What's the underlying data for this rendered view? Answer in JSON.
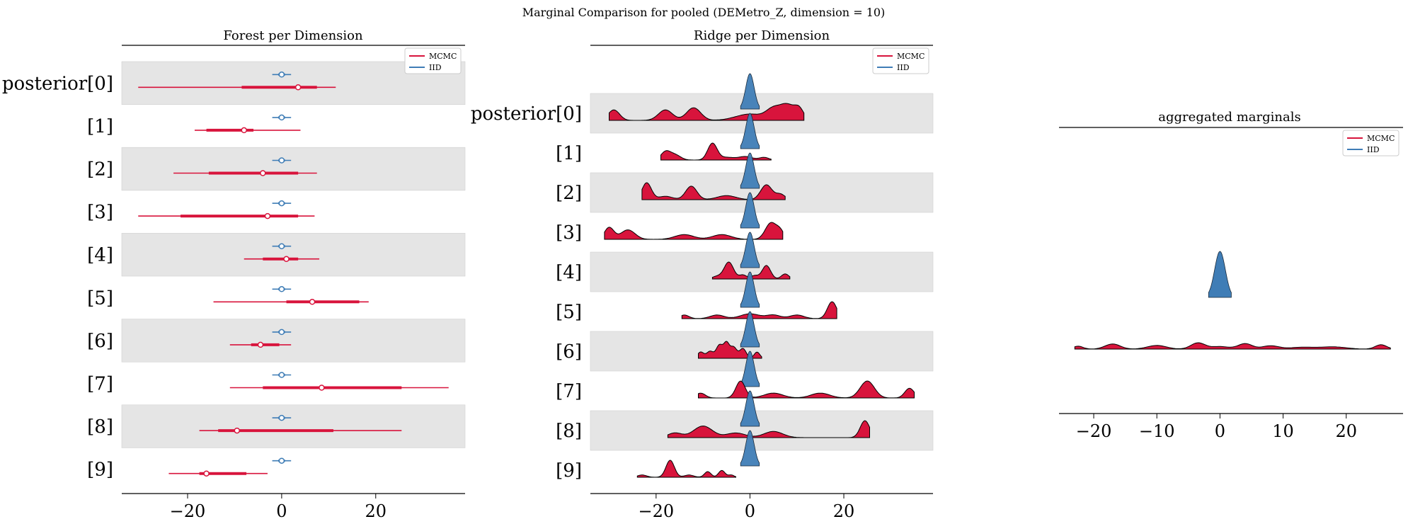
{
  "figure": {
    "suptitle": "Marginal Comparison for pooled (DEMetro_Z, dimension = 10)"
  },
  "colors": {
    "mcmc": "#d8143c",
    "iid": "#3f7db6",
    "band": "#e5e5e5",
    "edge": "#000000"
  },
  "chart_data": [
    {
      "type": "forest",
      "title": "Forest per Dimension",
      "xlim": [
        -34,
        39
      ],
      "xticks": [
        -20,
        0,
        20
      ],
      "legend": {
        "position": "top-right",
        "entries": [
          "MCMC",
          "IID"
        ]
      },
      "labels": [
        "posterior[0]",
        "[1]",
        "[2]",
        "[3]",
        "[4]",
        "[5]",
        "[6]",
        "[7]",
        "[8]",
        "[9]"
      ],
      "series": [
        {
          "name": "MCMC",
          "rows": [
            {
              "mean": 3.5,
              "hdi_50": [
                -8.5,
                7.5
              ],
              "hdi_94": [
                -30.5,
                11.5
              ]
            },
            {
              "mean": -8,
              "hdi_50": [
                -16,
                -6
              ],
              "hdi_94": [
                -18.5,
                4
              ]
            },
            {
              "mean": -4,
              "hdi_50": [
                -15.5,
                3.5
              ],
              "hdi_94": [
                -23,
                7.5
              ]
            },
            {
              "mean": -3,
              "hdi_50": [
                -21.5,
                3.5
              ],
              "hdi_94": [
                -30.5,
                7
              ]
            },
            {
              "mean": 1,
              "hdi_50": [
                -4,
                3.5
              ],
              "hdi_94": [
                -8,
                8
              ]
            },
            {
              "mean": 6.5,
              "hdi_50": [
                1,
                16.5
              ],
              "hdi_94": [
                -14.5,
                18.5
              ]
            },
            {
              "mean": -4.5,
              "hdi_50": [
                -6.5,
                -0.5
              ],
              "hdi_94": [
                -11,
                2
              ]
            },
            {
              "mean": 8.5,
              "hdi_50": [
                -4,
                25.5
              ],
              "hdi_94": [
                -11,
                35.5
              ]
            },
            {
              "mean": -9.5,
              "hdi_50": [
                -13.5,
                11
              ],
              "hdi_94": [
                -17.5,
                25.5
              ]
            },
            {
              "mean": -16,
              "hdi_50": [
                -17.5,
                -7.5
              ],
              "hdi_94": [
                -24,
                -3
              ]
            }
          ]
        },
        {
          "name": "IID",
          "rows": [
            {
              "mean": 0,
              "hdi_50": [
                -0.7,
                0.7
              ],
              "hdi_94": [
                -2,
                2
              ]
            },
            {
              "mean": 0,
              "hdi_50": [
                -0.7,
                0.7
              ],
              "hdi_94": [
                -2,
                2
              ]
            },
            {
              "mean": 0,
              "hdi_50": [
                -0.7,
                0.7
              ],
              "hdi_94": [
                -2,
                2
              ]
            },
            {
              "mean": 0,
              "hdi_50": [
                -0.7,
                0.7
              ],
              "hdi_94": [
                -2,
                2
              ]
            },
            {
              "mean": 0,
              "hdi_50": [
                -0.7,
                0.7
              ],
              "hdi_94": [
                -2,
                2
              ]
            },
            {
              "mean": 0,
              "hdi_50": [
                -0.7,
                0.7
              ],
              "hdi_94": [
                -2,
                2
              ]
            },
            {
              "mean": 0,
              "hdi_50": [
                -0.7,
                0.7
              ],
              "hdi_94": [
                -2,
                2
              ]
            },
            {
              "mean": 0,
              "hdi_50": [
                -0.7,
                0.7
              ],
              "hdi_94": [
                -2,
                2
              ]
            },
            {
              "mean": 0,
              "hdi_50": [
                -0.7,
                0.7
              ],
              "hdi_94": [
                -2,
                2
              ]
            },
            {
              "mean": 0,
              "hdi_50": [
                -0.7,
                0.7
              ],
              "hdi_94": [
                -2,
                2
              ]
            }
          ]
        }
      ]
    },
    {
      "type": "ridge",
      "title": "Ridge per Dimension",
      "xlim": [
        -34,
        39
      ],
      "xticks": [
        -20,
        0,
        20
      ],
      "legend": {
        "position": "top-right",
        "entries": [
          "MCMC",
          "IID"
        ]
      },
      "labels": [
        "posterior[0]",
        "[1]",
        "[2]",
        "[3]",
        "[4]",
        "[5]",
        "[6]",
        "[7]",
        "[8]",
        "[9]"
      ],
      "iid_density": {
        "range": [
          -2,
          2
        ],
        "peaks": [
          [
            0,
            1,
            0.9
          ]
        ]
      },
      "mcmc_densities": [
        {
          "range": [
            -30,
            11.5
          ],
          "peaks": [
            [
              -29,
              0.1,
              1.2
            ],
            [
              -18,
              0.1,
              1.5
            ],
            [
              -12,
              0.12,
              1.5
            ],
            [
              0,
              0.06,
              3
            ],
            [
              5,
              0.1,
              1.5
            ],
            [
              8,
              0.14,
              1.5
            ],
            [
              10.5,
              0.1,
              1
            ]
          ]
        },
        {
          "range": [
            -19,
            4.5
          ],
          "peaks": [
            [
              -18,
              0.18,
              1
            ],
            [
              -16,
              0.12,
              1.2
            ],
            [
              -8,
              0.38,
              1
            ],
            [
              -5,
              0.06,
              1.5
            ],
            [
              -1,
              0.08,
              1.5
            ],
            [
              3,
              0.06,
              1
            ]
          ]
        },
        {
          "range": [
            -23,
            7.5
          ],
          "peaks": [
            [
              -22,
              0.25,
              1
            ],
            [
              -18,
              0.05,
              1.5
            ],
            [
              -12.5,
              0.2,
              1.2
            ],
            [
              -5,
              0.06,
              2
            ],
            [
              3.5,
              0.22,
              1.2
            ],
            [
              6.5,
              0.08,
              1
            ]
          ]
        },
        {
          "range": [
            -31,
            7
          ],
          "peaks": [
            [
              -30,
              0.1,
              1
            ],
            [
              -26,
              0.08,
              1.5
            ],
            [
              -14,
              0.04,
              2
            ],
            [
              -6,
              0.04,
              2
            ],
            [
              4.5,
              0.14,
              1.2
            ],
            [
              6.5,
              0.06,
              0.8
            ]
          ]
        },
        {
          "range": [
            -8,
            8.5
          ],
          "peaks": [
            [
              -7,
              0.08,
              1
            ],
            [
              -4.5,
              0.5,
              1
            ],
            [
              -1.5,
              0.12,
              0.8
            ],
            [
              1,
              0.1,
              0.8
            ],
            [
              3.5,
              0.4,
              0.9
            ],
            [
              7.5,
              0.15,
              0.8
            ]
          ]
        },
        {
          "range": [
            -14.5,
            18.5
          ],
          "peaks": [
            [
              -14,
              0.06,
              1
            ],
            [
              -7,
              0.06,
              1.5
            ],
            [
              0,
              0.08,
              2
            ],
            [
              5,
              0.06,
              1.5
            ],
            [
              10,
              0.06,
              1.5
            ],
            [
              17.5,
              0.28,
              1
            ]
          ]
        },
        {
          "range": [
            -11,
            2.5
          ],
          "peaks": [
            [
              -10.5,
              0.18,
              0.7
            ],
            [
              -8.5,
              0.2,
              0.7
            ],
            [
              -6.5,
              0.38,
              0.7
            ],
            [
              -5,
              0.42,
              0.6
            ],
            [
              -3.5,
              0.32,
              0.7
            ],
            [
              -1.5,
              0.28,
              0.7
            ],
            [
              1.5,
              0.18,
              0.6
            ]
          ]
        },
        {
          "range": [
            -11,
            35
          ],
          "peaks": [
            [
              -10.5,
              0.04,
              1
            ],
            [
              -2,
              0.14,
              1
            ],
            [
              5,
              0.04,
              2
            ],
            [
              15,
              0.04,
              2
            ],
            [
              25,
              0.14,
              1.5
            ],
            [
              34,
              0.08,
              1
            ]
          ]
        },
        {
          "range": [
            -17.5,
            25.5
          ],
          "peaks": [
            [
              -16,
              0.06,
              1.5
            ],
            [
              -10,
              0.15,
              2
            ],
            [
              -3,
              0.06,
              2
            ],
            [
              5,
              0.08,
              2
            ],
            [
              24.5,
              0.22,
              1
            ]
          ]
        },
        {
          "range": [
            -24,
            -3
          ],
          "peaks": [
            [
              -23,
              0.06,
              1
            ],
            [
              -17,
              0.45,
              0.9
            ],
            [
              -13,
              0.06,
              1
            ],
            [
              -9,
              0.15,
              0.7
            ],
            [
              -6,
              0.18,
              0.7
            ],
            [
              -4,
              0.06,
              0.6
            ]
          ]
        }
      ]
    },
    {
      "type": "density",
      "title": "aggregated marginals",
      "xlim": [
        -25.5,
        29
      ],
      "xticks": [
        -20,
        -10,
        0,
        10,
        20
      ],
      "legend": {
        "position": "top-right",
        "entries": [
          "MCMC",
          "IID"
        ]
      },
      "iid_density": {
        "range": [
          -1.8,
          1.8
        ],
        "peaks": [
          [
            0,
            1,
            0.85
          ]
        ]
      },
      "mcmc_density": {
        "range": [
          -23,
          27
        ],
        "peaks": [
          [
            -22.5,
            0.4,
            0.8
          ],
          [
            -17,
            0.7,
            1.2
          ],
          [
            -10,
            0.5,
            1.5
          ],
          [
            -3.5,
            0.85,
            1.1
          ],
          [
            0,
            0.35,
            1.5
          ],
          [
            4,
            0.75,
            1.1
          ],
          [
            8,
            0.45,
            1.3
          ],
          [
            13,
            0.25,
            2
          ],
          [
            18,
            0.3,
            2
          ],
          [
            25.5,
            0.6,
            0.9
          ]
        ]
      }
    }
  ]
}
